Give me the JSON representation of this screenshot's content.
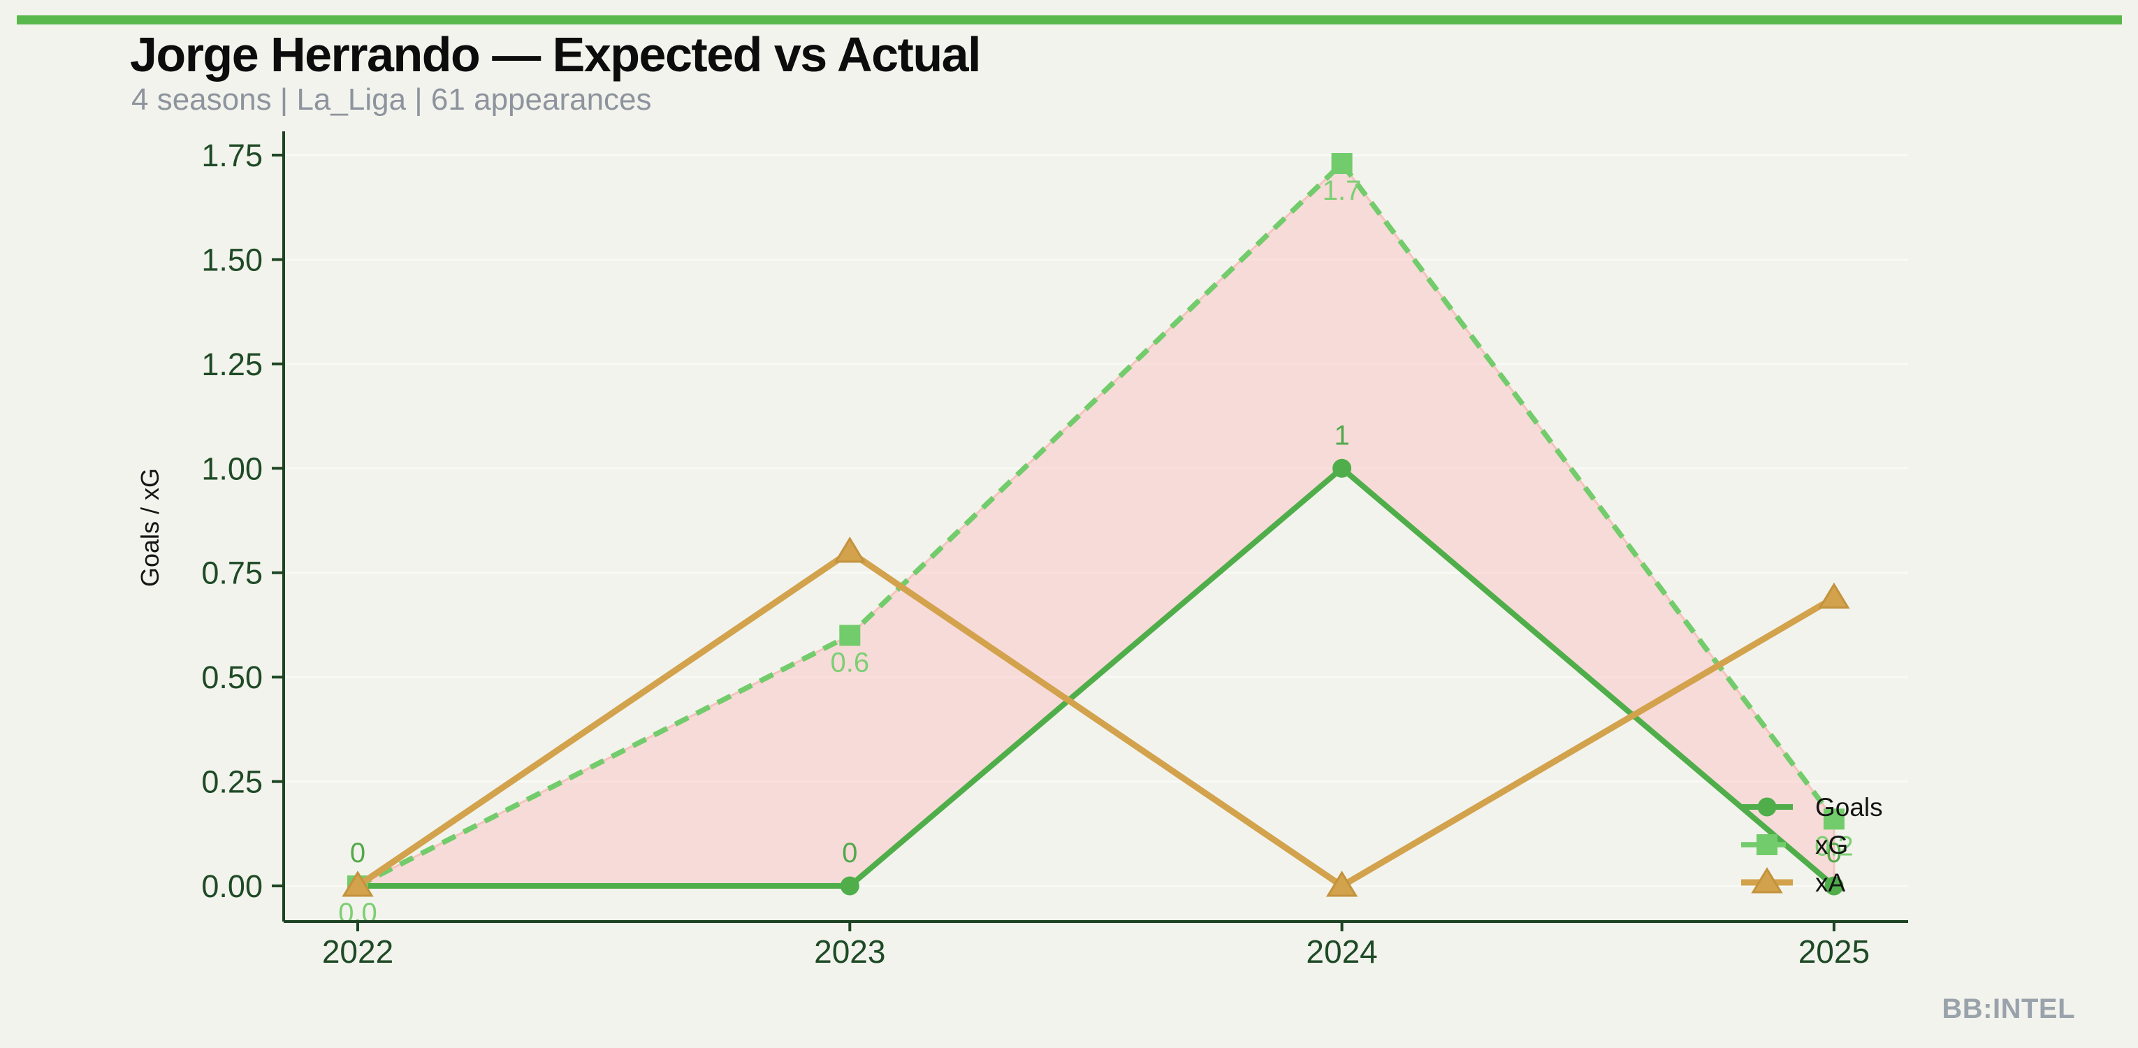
{
  "page": {
    "title": "Jorge Herrando — Expected vs Actual",
    "subtitle": "4 seasons | La_Liga | 61 appearances",
    "watermark": "BB:INTEL",
    "accent_bar_color": "#58b84c",
    "background_color": "#f2f3ec"
  },
  "chart_data": {
    "type": "line",
    "title": "Jorge Herrando — Expected vs Actual",
    "subtitle": "4 seasons | La_Liga | 61 appearances",
    "x": [
      "2022",
      "2023",
      "2024",
      "2025"
    ],
    "series": [
      {
        "name": "Goals",
        "values": [
          0,
          0,
          1,
          0
        ],
        "labels": [
          "0",
          "0",
          "1",
          "0"
        ],
        "label_side": "above",
        "color": "#4fae4a",
        "label_color": "#53a94c",
        "marker": "circle",
        "line_style": "solid"
      },
      {
        "name": "xG",
        "values": [
          0.0,
          0.6,
          1.73,
          0.16
        ],
        "labels": [
          "0.0",
          "0.6",
          "1.7",
          "0.2"
        ],
        "label_side": "below",
        "color": "#72cc6b",
        "label_color": "#7ccf74",
        "marker": "square",
        "line_style": "dashed"
      },
      {
        "name": "xA",
        "values": [
          0.0,
          0.8,
          0.0,
          0.69
        ],
        "labels": [
          "",
          "",
          "",
          ""
        ],
        "label_side": "none",
        "color": "#d3a24c",
        "marker": "triangle",
        "marker_edge_color": "#c3923c",
        "line_style": "solid"
      }
    ],
    "fill_between": {
      "upper": "xG",
      "lower": "Goals",
      "color": "rgba(255,186,188,0.42)",
      "edge_color": "#f4c4be"
    },
    "xlabel": "",
    "ylabel": "Goals / xG",
    "ytick_labels": [
      "0.00",
      "0.25",
      "0.50",
      "0.75",
      "1.00",
      "1.25",
      "1.50",
      "1.75"
    ],
    "ylim": [
      0,
      1.8
    ],
    "grid": "horizontal-faint",
    "grid_color": "rgba(255,255,255,0.55)",
    "axis_color": "#1d4423",
    "tick_label_color": "#1e4a26",
    "legend": {
      "position": "right-center",
      "entries": [
        "Goals",
        "xG",
        "xA"
      ],
      "text_color": "#141414"
    }
  }
}
